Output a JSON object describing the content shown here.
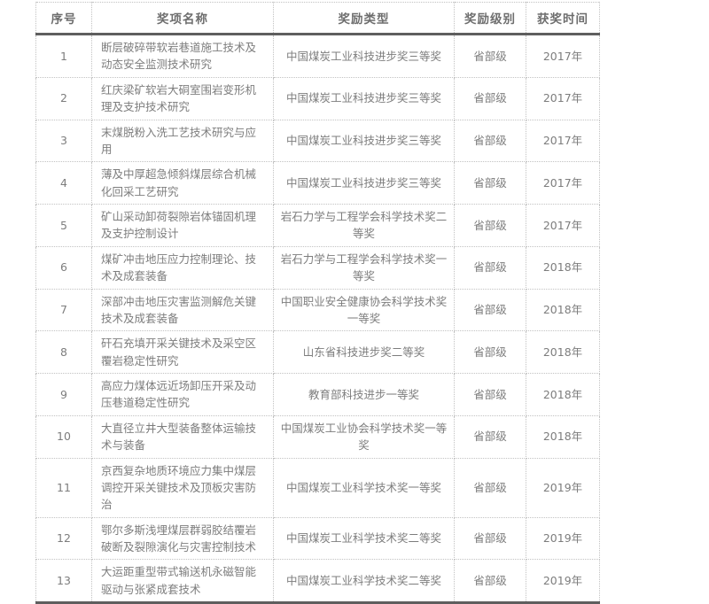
{
  "table": {
    "headers": {
      "no": "序号",
      "name": "奖项名称",
      "type": "奖励类型",
      "level": "奖励级别",
      "year": "获奖时间"
    },
    "rows": [
      {
        "no": "1",
        "name": "断层破碎带软岩巷道施工技术及动态安全监测技术研究",
        "type": "中国煤炭工业科技进步奖三等奖",
        "level": "省部级",
        "year": "2017年"
      },
      {
        "no": "2",
        "name": "红庆梁矿软岩大硐室围岩变形机理及支护技术研究",
        "type": "中国煤炭工业科技进步奖三等奖",
        "level": "省部级",
        "year": "2017年"
      },
      {
        "no": "3",
        "name": "末煤脱粉入洗工艺技术研究与应用",
        "type": "中国煤炭工业科技进步奖三等奖",
        "level": "省部级",
        "year": "2017年"
      },
      {
        "no": "4",
        "name": "薄及中厚超急倾斜煤层综合机械化回采工艺研究",
        "type": "中国煤炭工业科技进步奖三等奖",
        "level": "省部级",
        "year": "2017年"
      },
      {
        "no": "5",
        "name": "矿山采动卸荷裂隙岩体锚固机理及支护控制设计",
        "type": "岩石力学与工程学会科学技术奖二等奖",
        "level": "省部级",
        "year": "2017年"
      },
      {
        "no": "6",
        "name": "煤矿冲击地压应力控制理论、技术及成套装备",
        "type": "岩石力学与工程学会科学技术奖一等奖",
        "level": "省部级",
        "year": "2018年"
      },
      {
        "no": "7",
        "name": "深部冲击地压灾害监测解危关键技术及成套装备",
        "type": "中国职业安全健康协会科学技术奖一等奖",
        "level": "省部级",
        "year": "2018年"
      },
      {
        "no": "8",
        "name": "矸石充填开采关键技术及采空区覆岩稳定性研究",
        "type": "山东省科技进步奖二等奖",
        "level": "省部级",
        "year": "2018年"
      },
      {
        "no": "9",
        "name": "高应力煤体远近场卸压开采及动压巷道稳定性研究",
        "type": "教育部科技进步一等奖",
        "level": "省部级",
        "year": "2018年"
      },
      {
        "no": "10",
        "name": "大直径立井大型装备整体运输技术与装备",
        "type": "中国煤炭工业协会科学技术奖一等奖",
        "level": "省部级",
        "year": "2018年"
      },
      {
        "no": "11",
        "name": "京西复杂地质环境应力集中煤层调控开采关键技术及顶板灾害防治",
        "type": "中国煤炭工业科学技术奖一等奖",
        "level": "省部级",
        "year": "2019年"
      },
      {
        "no": "12",
        "name": "鄂尔多斯浅埋煤层群弱胶结覆岩破断及裂隙演化与灾害控制技术",
        "type": "中国煤炭工业科学技术奖二等奖",
        "level": "省部级",
        "year": "2019年"
      },
      {
        "no": "13",
        "name": "大运距重型带式输送机永磁智能驱动与张紧成套技术",
        "type": "中国煤炭工业科学技术奖二等奖",
        "level": "省部级",
        "year": "2019年"
      }
    ]
  }
}
